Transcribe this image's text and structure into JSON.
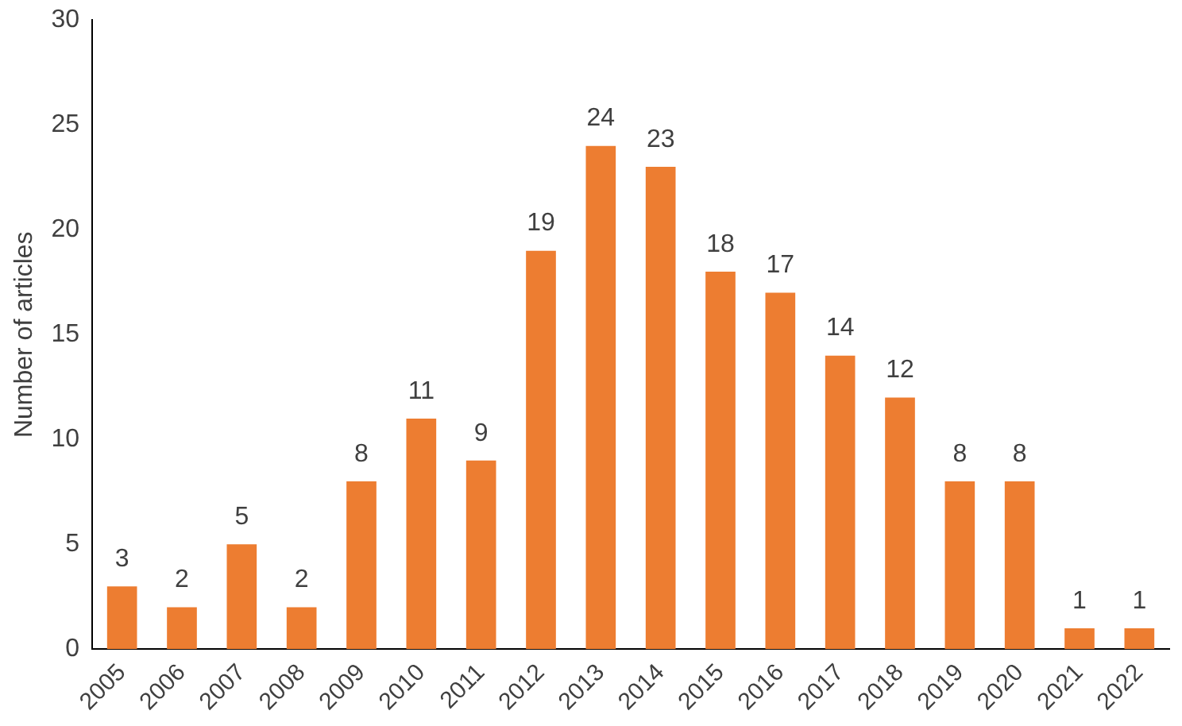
{
  "chart_data": {
    "type": "bar",
    "ylabel": "Number of articles",
    "categories": [
      "2005",
      "2006",
      "2007",
      "2008",
      "2009",
      "2010",
      "2011",
      "2012",
      "2013",
      "2014",
      "2015",
      "2016",
      "2017",
      "2018",
      "2019",
      "2020",
      "2021",
      "2022"
    ],
    "values": [
      3,
      2,
      5,
      2,
      8,
      11,
      9,
      19,
      24,
      23,
      18,
      17,
      14,
      12,
      8,
      8,
      1,
      1
    ],
    "color": "#ed7d31",
    "ylim": [
      0,
      30
    ],
    "yticks": [
      0,
      5,
      10,
      15,
      20,
      25,
      30
    ],
    "grid": false,
    "legend": false,
    "data_labels": true
  }
}
